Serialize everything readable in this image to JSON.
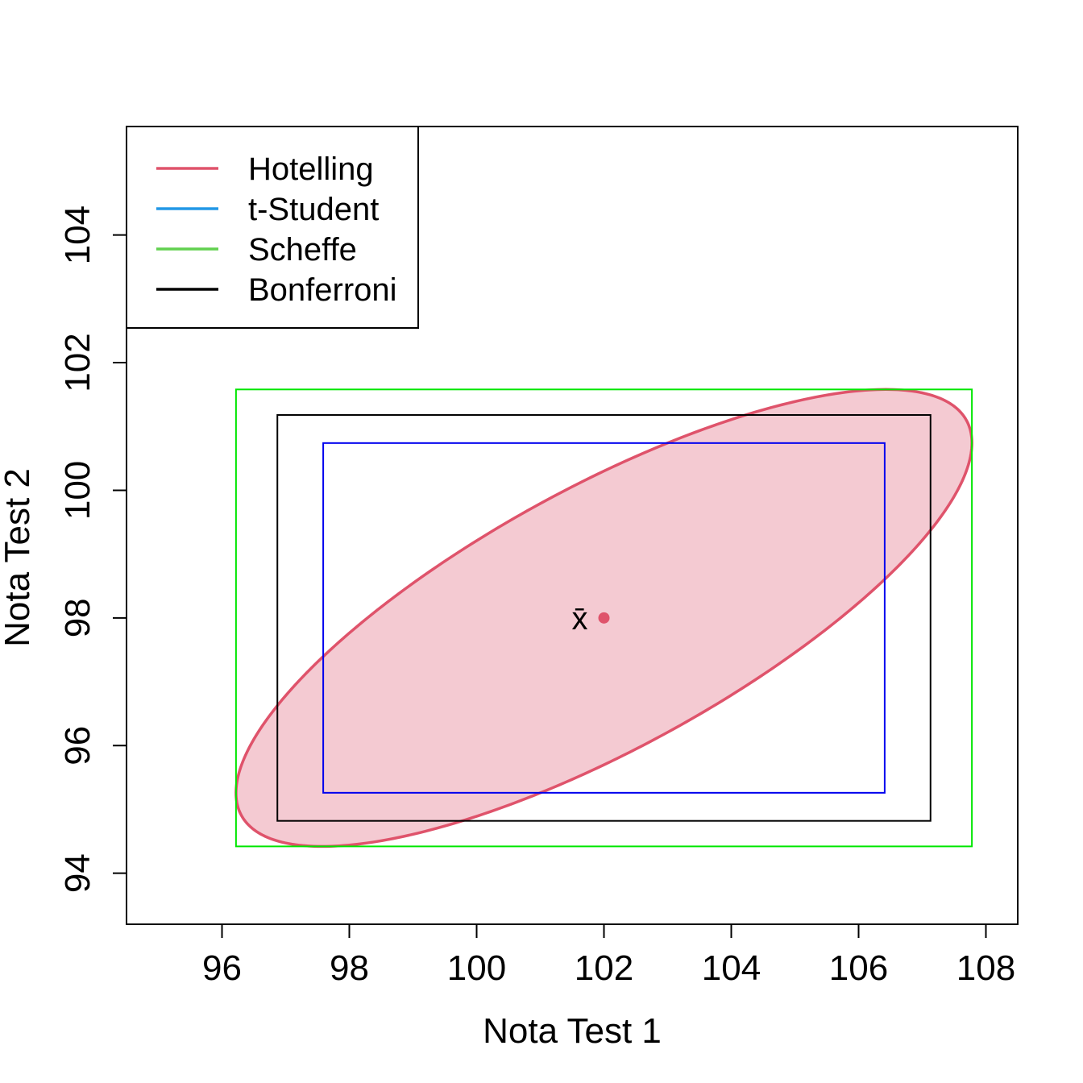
{
  "chart_data": {
    "type": "scatter",
    "xlabel": "Nota Test 1",
    "ylabel": "Nota Test 2",
    "xlim": [
      94.5,
      108.5
    ],
    "ylim": [
      93.2,
      105.7
    ],
    "x_ticks": [
      96,
      98,
      100,
      102,
      104,
      106,
      108
    ],
    "y_ticks": [
      94,
      96,
      98,
      100,
      102,
      104
    ],
    "grid": false,
    "legend_position": "top-left",
    "legend": [
      {
        "label": "Hotelling",
        "color": "#DF536B"
      },
      {
        "label": "t-Student",
        "color": "#2297E6"
      },
      {
        "label": "Scheffe",
        "color": "#61D04F"
      },
      {
        "label": "Bonferroni",
        "color": "#000000"
      }
    ],
    "mean_point": {
      "label": "x̄",
      "x": 102,
      "y": 98,
      "color": "#DF536B"
    },
    "ellipse": {
      "name": "Hotelling",
      "center": [
        102,
        98
      ],
      "x_range": [
        96.22,
        107.78
      ],
      "y_range": [
        94.42,
        101.58
      ],
      "stroke": "#DF536B",
      "fill": "#F4CAD2"
    },
    "rectangles": [
      {
        "name": "Scheffe",
        "x": [
          96.22,
          107.78
        ],
        "y": [
          94.42,
          101.58
        ],
        "color": "#00E600"
      },
      {
        "name": "Bonferroni",
        "x": [
          96.87,
          107.13
        ],
        "y": [
          94.82,
          101.18
        ],
        "color": "#000000"
      },
      {
        "name": "t-Student",
        "x": [
          97.59,
          106.41
        ],
        "y": [
          95.26,
          100.74
        ],
        "color": "#0000EE"
      }
    ]
  }
}
